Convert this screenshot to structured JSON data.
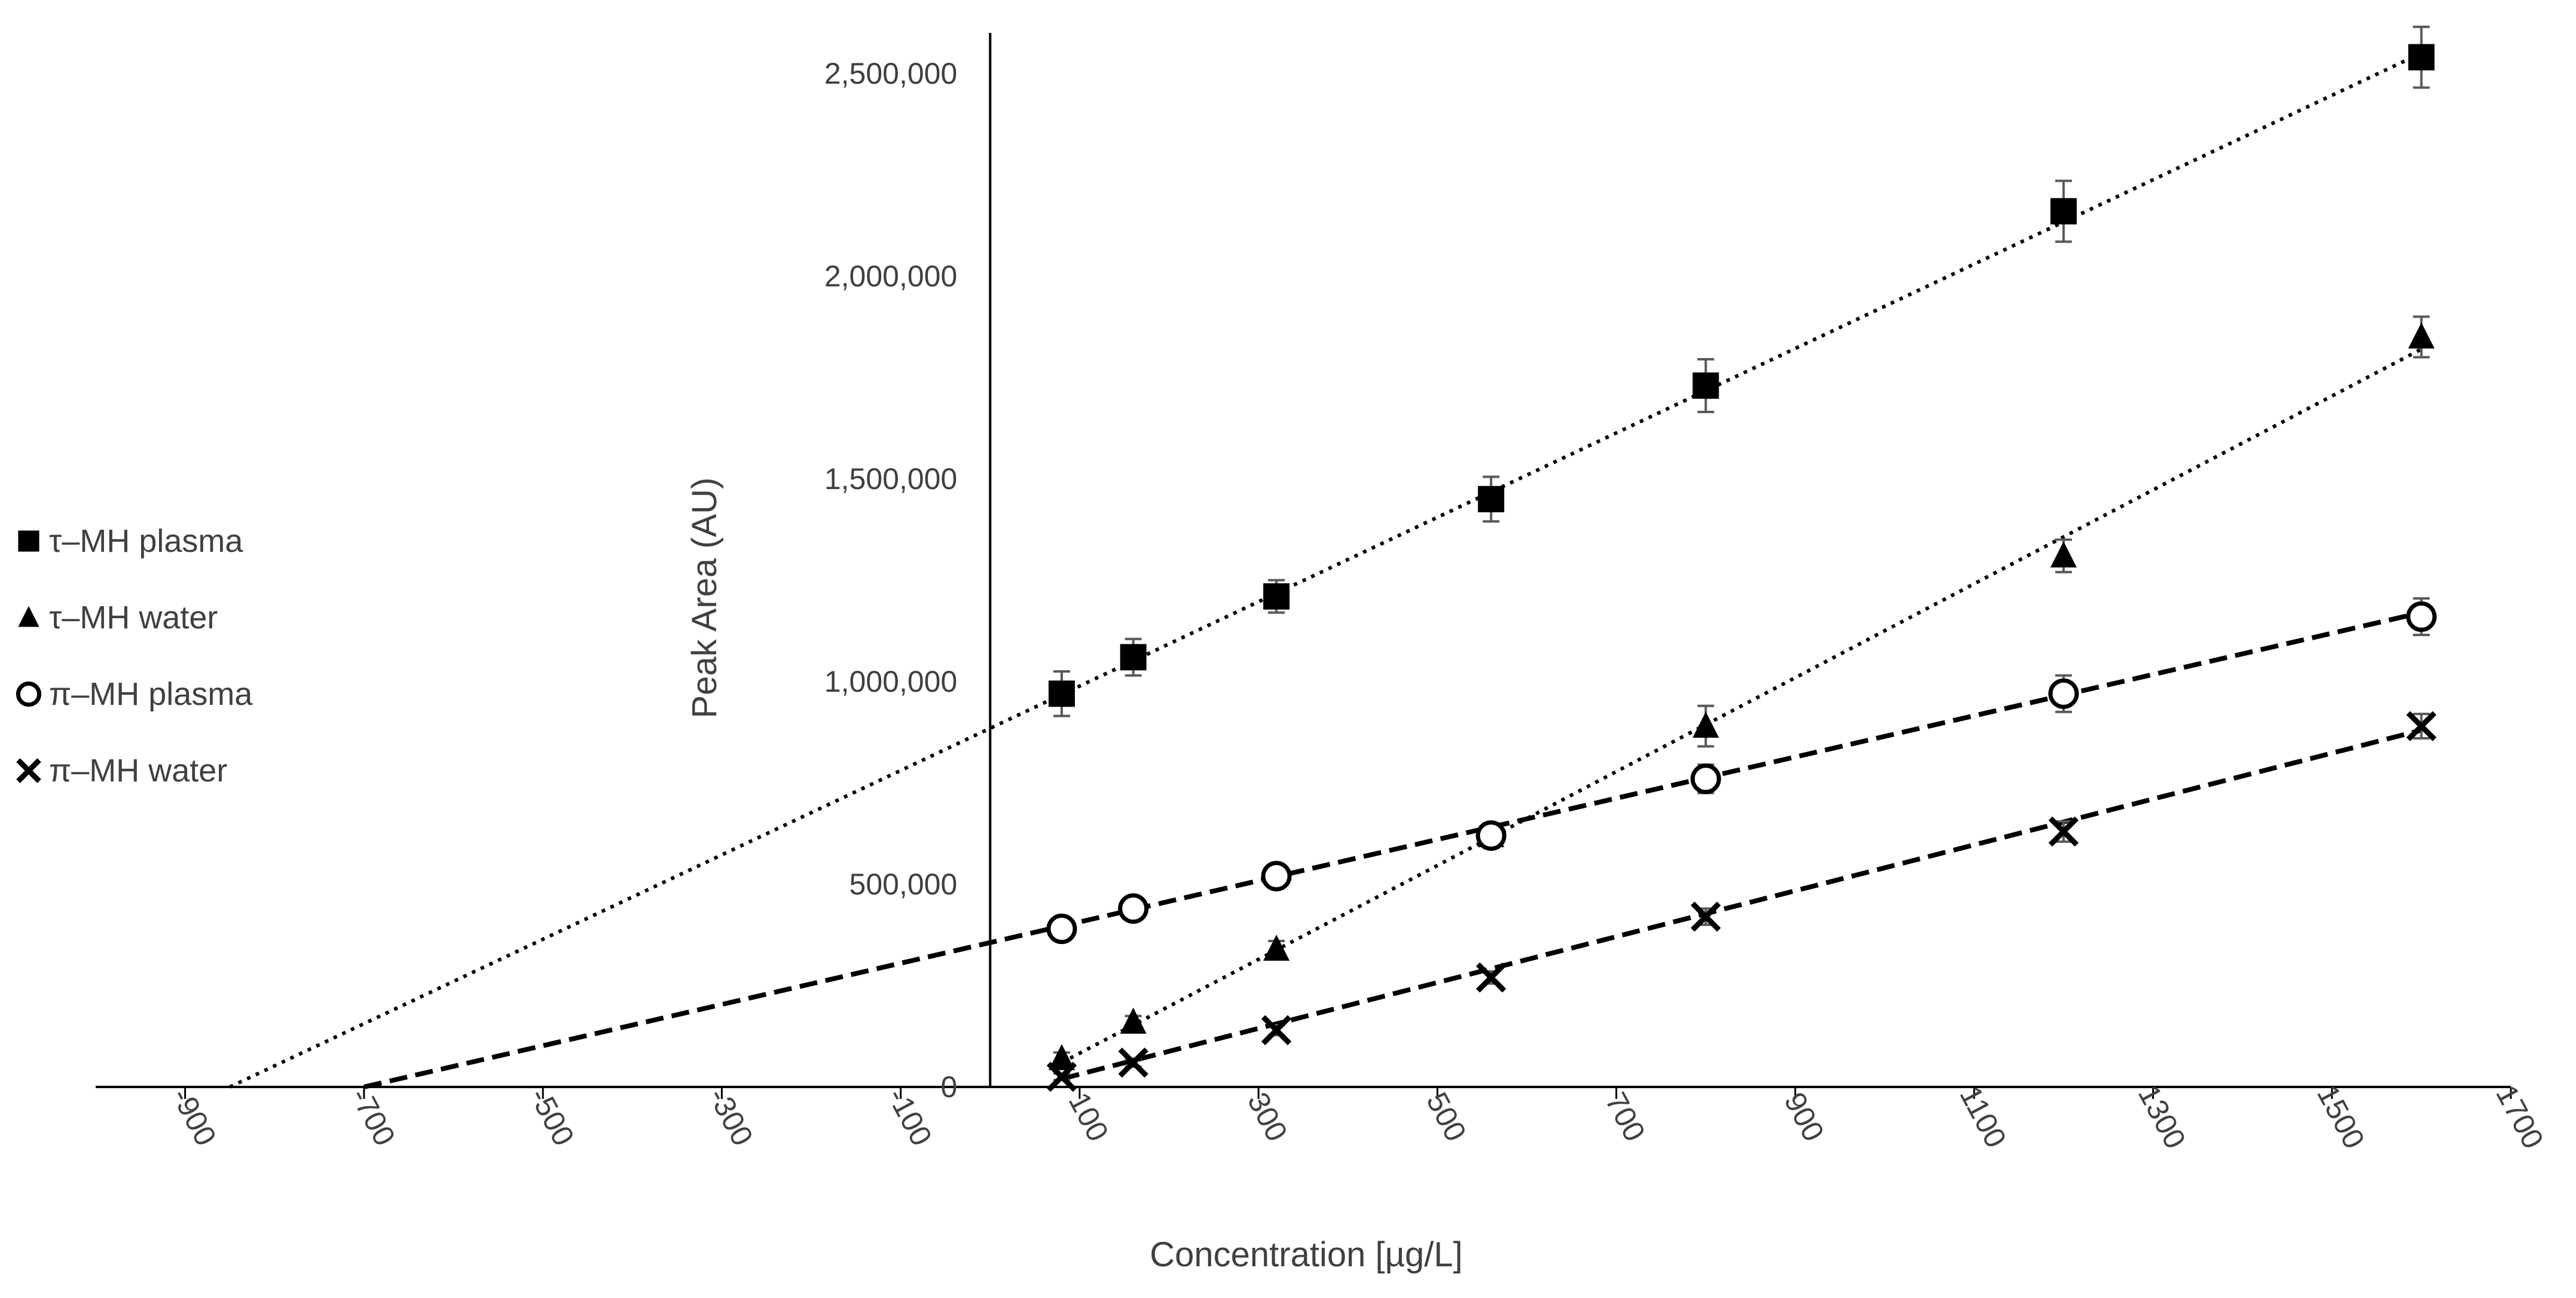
{
  "chart_data": {
    "type": "scatter",
    "title": "",
    "xlabel": "Concentration [µg/L]",
    "ylabel": "Peak Area (AU)",
    "xlim": [
      -1000,
      1700
    ],
    "ylim": [
      0,
      2600000
    ],
    "x_ticks": [
      -900,
      -700,
      -500,
      -300,
      -100,
      100,
      300,
      500,
      700,
      900,
      1100,
      1300,
      1500,
      1700
    ],
    "x_tick_labels": [
      "-900",
      "-700",
      "-500",
      "-300",
      "-100",
      "100",
      "300",
      "500",
      "700",
      "900",
      "1100",
      "1300",
      "1500",
      "1700"
    ],
    "y_ticks": [
      0,
      500000,
      1000000,
      1500000,
      2000000,
      2500000
    ],
    "y_tick_labels": [
      "0",
      "500,000",
      "1,000,000",
      "1,500,000",
      "2,000,000",
      "2,500,000"
    ],
    "grid": false,
    "legend_position": "left-middle",
    "series": [
      {
        "name": "τ–MH plasma",
        "marker": "square",
        "trendline": "dotted",
        "x": [
          80,
          160,
          320,
          560,
          800,
          1200,
          1600
        ],
        "values": [
          970000,
          1060000,
          1210000,
          1450000,
          1730000,
          2160000,
          2540000
        ],
        "error": [
          55000,
          45000,
          40000,
          55000,
          65000,
          75000,
          75000
        ],
        "trend_x": [
          -850,
          1600
        ],
        "trend_y": [
          0,
          2550000
        ]
      },
      {
        "name": "τ–MH water",
        "marker": "triangle",
        "trendline": "dotted",
        "x": [
          80,
          160,
          320,
          560,
          800,
          1200,
          1600
        ],
        "values": [
          70000,
          160000,
          340000,
          620000,
          890000,
          1310000,
          1850000
        ],
        "error": [
          15000,
          15000,
          20000,
          30000,
          50000,
          40000,
          50000
        ],
        "trend_x": [
          80,
          1600
        ],
        "trend_y": [
          60000,
          1820000
        ]
      },
      {
        "name": "π–MH plasma",
        "marker": "circle-open",
        "trendline": "dashed",
        "x": [
          80,
          160,
          320,
          560,
          800,
          1200,
          1600
        ],
        "values": [
          390000,
          440000,
          520000,
          620000,
          760000,
          970000,
          1160000
        ],
        "error": [
          20000,
          20000,
          25000,
          30000,
          35000,
          45000,
          45000
        ],
        "trend_x": [
          -700,
          1600
        ],
        "trend_y": [
          0,
          1170000
        ]
      },
      {
        "name": "π–MH water",
        "marker": "x",
        "trendline": "dashed",
        "x": [
          80,
          160,
          320,
          560,
          800,
          1200,
          1600
        ],
        "values": [
          25000,
          60000,
          140000,
          270000,
          420000,
          630000,
          890000
        ],
        "error": [
          8000,
          10000,
          12000,
          15000,
          20000,
          25000,
          30000
        ],
        "trend_x": [
          80,
          1600
        ],
        "trend_y": [
          20000,
          880000
        ]
      }
    ]
  }
}
